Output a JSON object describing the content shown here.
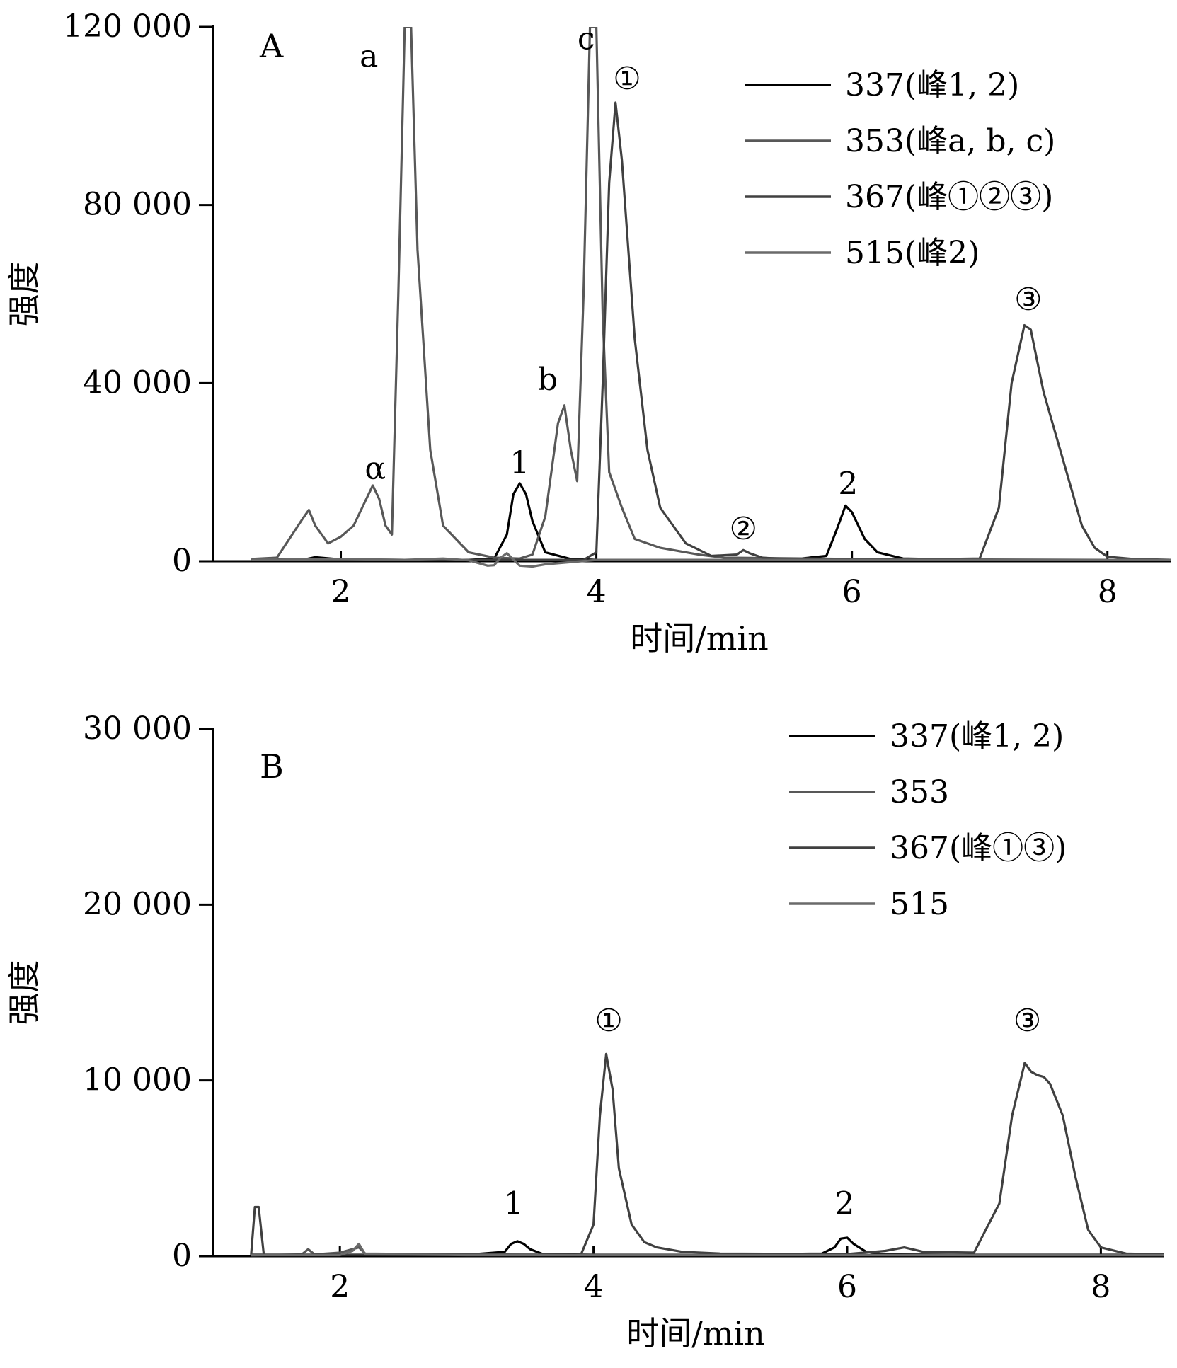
{
  "chart_data": [
    {
      "type": "line",
      "panel_label": "A",
      "xlabel": "时间/min",
      "ylabel": "强度",
      "xlim": [
        1.0,
        8.5
      ],
      "ylim": [
        0,
        120000
      ],
      "xticks": [
        2,
        4,
        6,
        8
      ],
      "xtick_labels": [
        "2",
        "4",
        "6",
        "8"
      ],
      "yticks": [
        0,
        40000,
        80000,
        120000
      ],
      "ytick_labels": [
        "0",
        "40 000",
        "80 000",
        "120 000"
      ],
      "legend_placement": "top-right",
      "series": [
        {
          "name": "337(峰1, 2)",
          "color": "#000000",
          "x": [
            1.3,
            1.5,
            1.7,
            1.8,
            2.0,
            2.5,
            3.0,
            3.2,
            3.3,
            3.35,
            3.4,
            3.45,
            3.5,
            3.6,
            3.8,
            4.0,
            4.5,
            5.0,
            5.5,
            5.8,
            5.88,
            5.95,
            6.0,
            6.1,
            6.2,
            6.4,
            7.0,
            8.0,
            8.5
          ],
          "y": [
            300,
            500,
            300,
            900,
            400,
            300,
            300,
            600,
            6000,
            15000,
            17500,
            15000,
            9000,
            2000,
            500,
            300,
            300,
            300,
            300,
            1200,
            7000,
            12500,
            11000,
            5000,
            2000,
            600,
            300,
            300,
            300
          ]
        },
        {
          "name": "353(峰a, b, c)",
          "color": "#585858",
          "x": [
            1.3,
            1.5,
            1.7,
            1.75,
            1.8,
            1.9,
            2.0,
            2.1,
            2.2,
            2.25,
            2.3,
            2.35,
            2.4,
            2.45,
            2.5,
            2.55,
            2.6,
            2.7,
            2.8,
            3.0,
            3.2,
            3.4,
            3.5,
            3.6,
            3.7,
            3.75,
            3.8,
            3.85,
            3.9,
            3.95,
            4.0,
            4.05,
            4.1,
            4.2,
            4.3,
            4.5,
            4.8,
            5.0,
            6.0,
            8.0,
            8.5
          ],
          "y": [
            500,
            800,
            9500,
            11500,
            8000,
            4000,
            5500,
            8000,
            14000,
            17000,
            14000,
            8000,
            6000,
            60000,
            120000,
            120000,
            70000,
            25000,
            8000,
            2000,
            800,
            600,
            1500,
            10000,
            31000,
            35000,
            25000,
            18000,
            60000,
            120000,
            120000,
            55000,
            20000,
            12000,
            5000,
            3000,
            1500,
            800,
            500,
            300,
            300
          ]
        },
        {
          "name": "367(峰①②③)",
          "color": "#404040",
          "x": [
            1.3,
            2.0,
            3.0,
            3.2,
            3.5,
            3.9,
            4.0,
            4.05,
            4.1,
            4.15,
            4.2,
            4.3,
            4.4,
            4.5,
            4.7,
            4.9,
            5.1,
            5.15,
            5.2,
            5.3,
            5.5,
            6.0,
            6.5,
            7.0,
            7.15,
            7.25,
            7.35,
            7.4,
            7.45,
            7.5,
            7.6,
            7.7,
            7.8,
            7.9,
            8.0,
            8.2,
            8.5
          ],
          "y": [
            300,
            300,
            300,
            300,
            300,
            300,
            2000,
            40000,
            85000,
            103000,
            90000,
            50000,
            25000,
            12000,
            4000,
            1200,
            1500,
            2500,
            1800,
            800,
            400,
            400,
            400,
            600,
            12000,
            40000,
            53000,
            52000,
            45000,
            38000,
            28000,
            18000,
            8000,
            3000,
            1000,
            500,
            300
          ]
        },
        {
          "name": "515(峰2)",
          "color": "#6a6a6a",
          "x": [
            1.3,
            2.0,
            2.5,
            2.8,
            3.0,
            3.1,
            3.15,
            3.2,
            3.25,
            3.3,
            3.4,
            3.5,
            3.6,
            4.0,
            5.0,
            6.0,
            8.0,
            8.5
          ],
          "y": [
            300,
            500,
            300,
            600,
            200,
            -600,
            -1000,
            -900,
            800,
            1800,
            -1000,
            -1200,
            -700,
            300,
            300,
            300,
            300,
            300
          ]
        }
      ],
      "annotations": [
        {
          "text": "a",
          "x": 2.22,
          "y": 111000
        },
        {
          "text": "c",
          "x": 3.92,
          "y": 115000
        },
        {
          "text": "①",
          "x": 4.24,
          "y": 106000
        },
        {
          "text": "b",
          "x": 3.62,
          "y": 38500
        },
        {
          "text": "α",
          "x": 2.27,
          "y": 18500
        },
        {
          "text": "1",
          "x": 3.4,
          "y": 19700
        },
        {
          "text": "②",
          "x": 5.15,
          "y": 4900
        },
        {
          "text": "2",
          "x": 5.97,
          "y": 15000
        },
        {
          "text": "③",
          "x": 7.38,
          "y": 56400
        }
      ]
    },
    {
      "type": "line",
      "panel_label": "B",
      "xlabel": "时间/min",
      "ylabel": "强度",
      "xlim": [
        1.0,
        8.5
      ],
      "ylim": [
        0,
        30000
      ],
      "xticks": [
        2,
        4,
        6,
        8
      ],
      "xtick_labels": [
        "2",
        "4",
        "6",
        "8"
      ],
      "yticks": [
        0,
        10000,
        20000,
        30000
      ],
      "ytick_labels": [
        "0",
        "10 000",
        "20 000",
        "30 000"
      ],
      "legend_placement": "top-right",
      "series": [
        {
          "name": "337(峰1, 2)",
          "color": "#000000",
          "x": [
            1.3,
            2.0,
            3.0,
            3.3,
            3.35,
            3.4,
            3.45,
            3.5,
            3.6,
            4.0,
            5.0,
            5.8,
            5.9,
            5.95,
            6.0,
            6.05,
            6.15,
            6.3,
            7.0,
            8.0,
            8.5
          ],
          "y": [
            80,
            80,
            80,
            250,
            700,
            850,
            700,
            400,
            120,
            80,
            80,
            150,
            500,
            1000,
            1050,
            700,
            250,
            100,
            80,
            80,
            80
          ]
        },
        {
          "name": "353",
          "color": "#585858",
          "x": [
            1.3,
            1.7,
            1.75,
            1.8,
            2.0,
            2.1,
            2.15,
            2.2,
            3.0,
            4.0,
            8.5
          ],
          "y": [
            50,
            100,
            400,
            100,
            200,
            400,
            500,
            150,
            100,
            80,
            60
          ]
        },
        {
          "name": "367(峰①③)",
          "color": "#404040",
          "x": [
            1.3,
            1.33,
            1.36,
            1.4,
            3.0,
            3.9,
            4.0,
            4.05,
            4.1,
            4.15,
            4.2,
            4.3,
            4.4,
            4.5,
            4.7,
            5.0,
            6.0,
            6.3,
            6.45,
            6.6,
            7.0,
            7.2,
            7.3,
            7.4,
            7.45,
            7.5,
            7.55,
            7.6,
            7.7,
            7.8,
            7.9,
            8.0,
            8.2,
            8.5
          ],
          "y": [
            80,
            2800,
            2800,
            80,
            80,
            80,
            1800,
            8000,
            11500,
            9500,
            5000,
            1800,
            800,
            500,
            250,
            150,
            120,
            300,
            500,
            250,
            200,
            3000,
            8000,
            11000,
            10500,
            10300,
            10200,
            9800,
            8000,
            4500,
            1500,
            500,
            150,
            100
          ]
        },
        {
          "name": "515",
          "color": "#6a6a6a",
          "x": [
            1.3,
            2.0,
            2.1,
            2.15,
            2.2,
            3.0,
            8.5
          ],
          "y": [
            60,
            60,
            300,
            700,
            100,
            60,
            60
          ]
        }
      ],
      "annotations": [
        {
          "text": "①",
          "x": 4.12,
          "y": 12800
        },
        {
          "text": "③",
          "x": 7.42,
          "y": 12800
        },
        {
          "text": "1",
          "x": 3.37,
          "y": 2400
        },
        {
          "text": "2",
          "x": 5.98,
          "y": 2400
        }
      ]
    }
  ]
}
